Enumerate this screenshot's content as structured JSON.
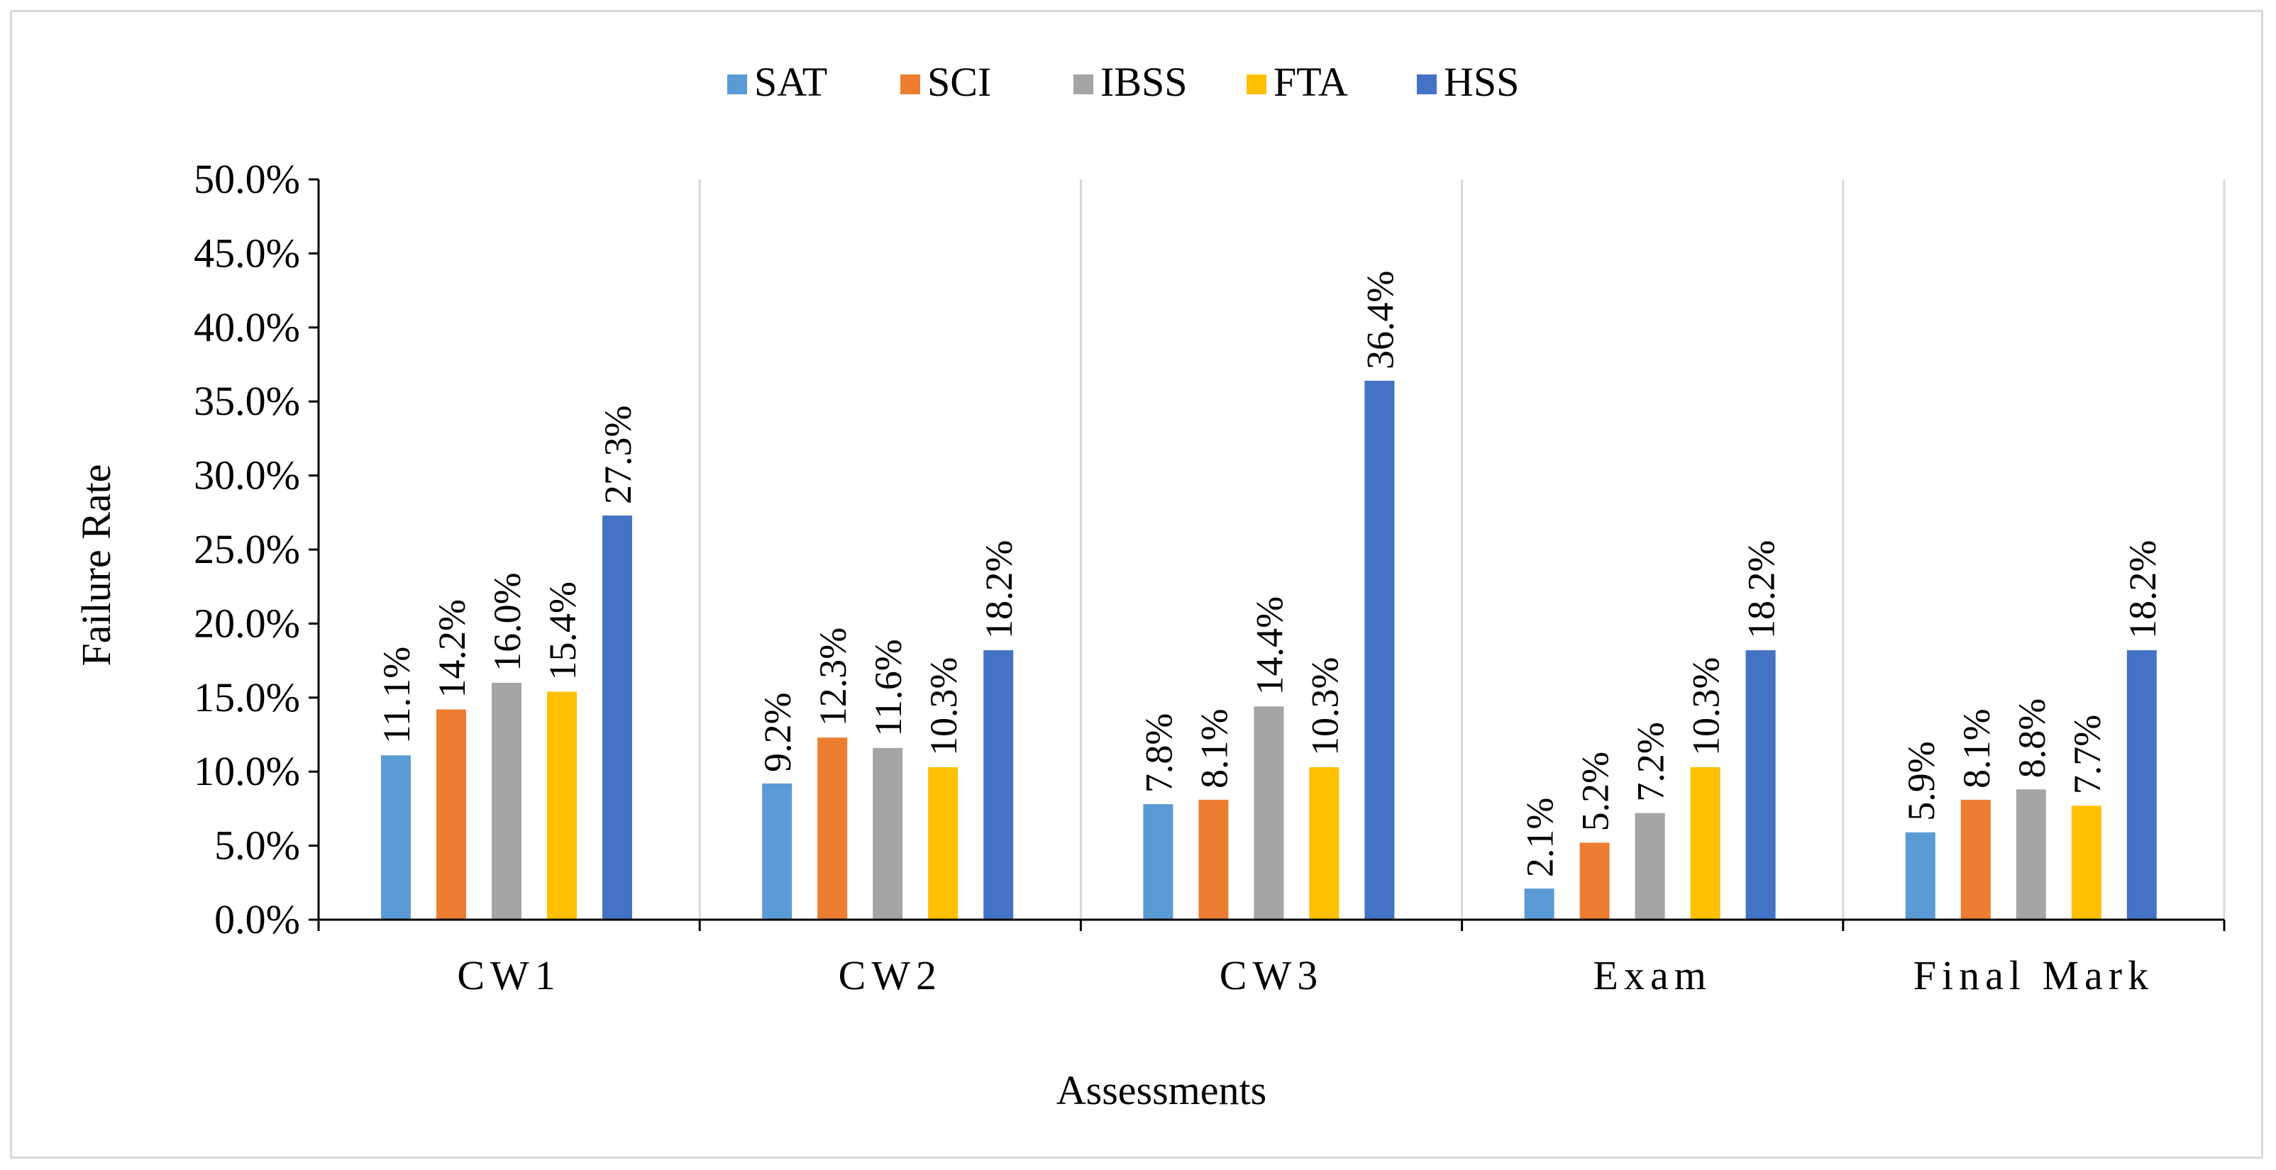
{
  "chart_data": {
    "type": "bar",
    "title": "",
    "xlabel": "Assessments",
    "ylabel": "Failure Rate",
    "categories": [
      "CW1",
      "CW2",
      "CW3",
      "Exam",
      "Final Mark"
    ],
    "ylim": [
      0,
      50
    ],
    "ytick_step": 5,
    "ytick_labels": [
      "0.0%",
      "5.0%",
      "10.0%",
      "15.0%",
      "20.0%",
      "25.0%",
      "30.0%",
      "35.0%",
      "40.0%",
      "45.0%",
      "50.0%"
    ],
    "grid": "vertical category separators",
    "legend_position": "top",
    "series": [
      {
        "name": "SAT",
        "color": "#5b9bd5",
        "values": [
          11.1,
          9.2,
          7.8,
          2.1,
          5.9
        ],
        "labels": [
          "11.1%",
          "9.2%",
          "7.8%",
          "2.1%",
          "5.9%"
        ]
      },
      {
        "name": "SCI",
        "color": "#ed7d31",
        "values": [
          14.2,
          12.3,
          8.1,
          5.2,
          8.1
        ],
        "labels": [
          "14.2%",
          "12.3%",
          "8.1%",
          "5.2%",
          "8.1%"
        ]
      },
      {
        "name": "IBSS",
        "color": "#a5a5a5",
        "values": [
          16.0,
          11.6,
          14.4,
          7.2,
          8.8
        ],
        "labels": [
          "16.0%",
          "11.6%",
          "14.4%",
          "7.2%",
          "8.8%"
        ]
      },
      {
        "name": "FTA",
        "color": "#ffc000",
        "values": [
          15.4,
          10.3,
          10.3,
          10.3,
          7.7
        ],
        "labels": [
          "15.4%",
          "10.3%",
          "10.3%",
          "10.3%",
          "7.7%"
        ]
      },
      {
        "name": "HSS",
        "color": "#4472c4",
        "values": [
          27.3,
          18.2,
          36.4,
          18.2,
          18.2
        ],
        "labels": [
          "27.3%",
          "18.2%",
          "36.4%",
          "18.2%",
          "18.2%"
        ]
      }
    ]
  }
}
